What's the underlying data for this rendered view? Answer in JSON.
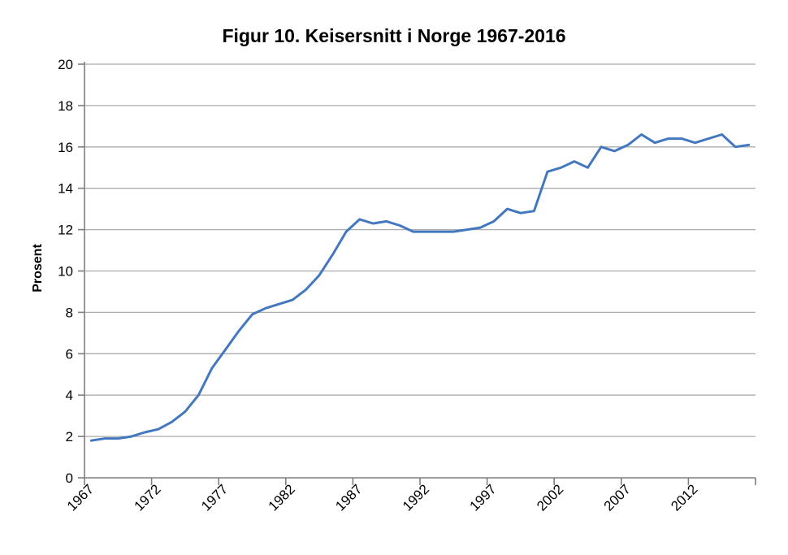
{
  "chart_data": {
    "type": "line",
    "title": "Figur 10. Keisersnitt i Norge 1967-2016",
    "ylabel": "Prosent",
    "xlabel": "",
    "years": [
      1967,
      1968,
      1969,
      1970,
      1971,
      1972,
      1973,
      1974,
      1975,
      1976,
      1977,
      1978,
      1979,
      1980,
      1981,
      1982,
      1983,
      1984,
      1985,
      1986,
      1987,
      1988,
      1989,
      1990,
      1991,
      1992,
      1993,
      1994,
      1995,
      1996,
      1997,
      1998,
      1999,
      2000,
      2001,
      2002,
      2003,
      2004,
      2005,
      2006,
      2007,
      2008,
      2009,
      2010,
      2011,
      2012,
      2013,
      2014,
      2015,
      2016
    ],
    "values": [
      1.8,
      1.9,
      1.9,
      2.0,
      2.2,
      2.35,
      2.7,
      3.2,
      4.0,
      5.3,
      6.2,
      7.1,
      7.9,
      8.2,
      8.4,
      8.6,
      9.1,
      9.8,
      10.8,
      11.9,
      12.5,
      12.3,
      12.4,
      12.2,
      11.9,
      11.9,
      11.9,
      11.9,
      12.0,
      12.1,
      12.4,
      13.0,
      12.8,
      12.9,
      14.8,
      15.0,
      15.3,
      15.0,
      16.0,
      15.8,
      16.1,
      16.6,
      16.2,
      16.4,
      16.4,
      16.2,
      16.4,
      16.6,
      16.0,
      16.1
    ],
    "ylim": [
      0,
      20
    ],
    "ytick_interval": 2,
    "ytick_labels": [
      "0",
      "2",
      "4",
      "6",
      "8",
      "10",
      "12",
      "14",
      "16",
      "18",
      "20"
    ],
    "xtick_labels": [
      "1967",
      "1972",
      "1977",
      "1982",
      "1987",
      "1992",
      "1997",
      "2002",
      "2007",
      "2012"
    ],
    "xtick_label_interval": 5,
    "grid": "horizontal",
    "legend": "none",
    "colors": {
      "line": "#4377BE",
      "grid": "#ACACAC",
      "axis": "#7F7F7F",
      "text": "#000000",
      "background": "#FFFFFF"
    }
  }
}
